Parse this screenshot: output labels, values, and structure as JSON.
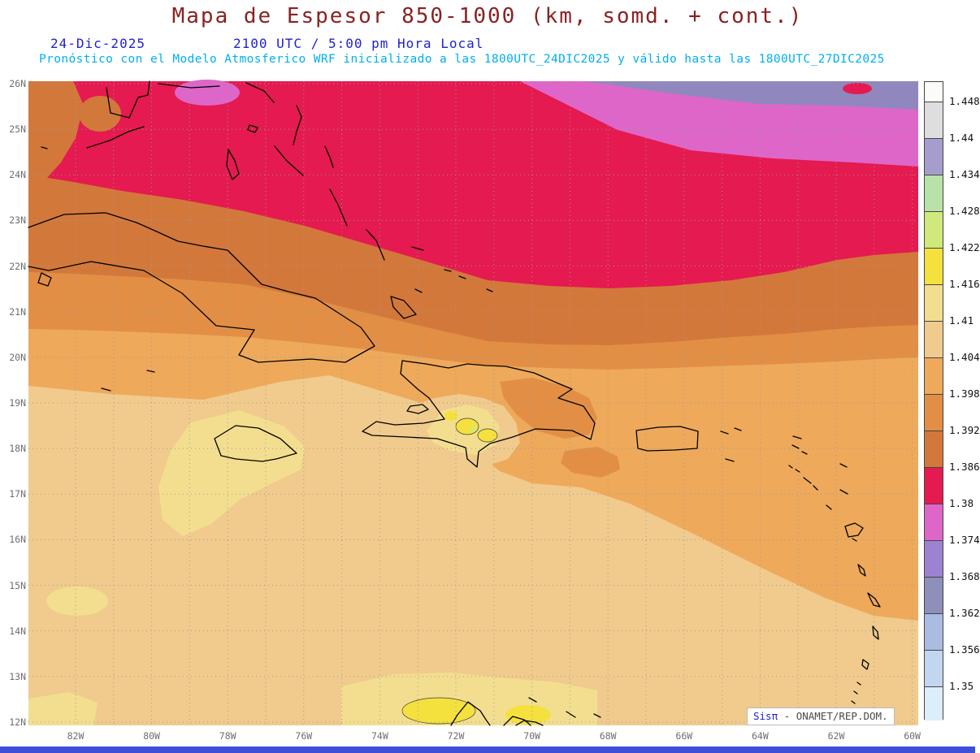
{
  "header": {
    "title": "Mapa de Espesor 850-1000 (km, somd. + cont.)",
    "date": "24-Dic-2025",
    "local_time": "2100 UTC / 5:00 pm Hora Local",
    "forecast_note": "Pronóstico con el Modelo Atmosferico WRF inicializado a las 1800UTC_24DIC2025 y válido hasta las  1800UTC_27DIC2025"
  },
  "map": {
    "lat_labels": [
      "26N",
      "25N",
      "24N",
      "23N",
      "22N",
      "21N",
      "20N",
      "19N",
      "18N",
      "17N",
      "16N",
      "15N",
      "14N",
      "13N",
      "12N"
    ],
    "lon_labels": [
      "82W",
      "80W",
      "78W",
      "76W",
      "74W",
      "72W",
      "70W",
      "68W",
      "66W",
      "64W",
      "62W",
      "60W"
    ],
    "watermark": {
      "brand": "Sisπ",
      "dash": "-",
      "org": "ONAMET/REP.DOM."
    }
  },
  "colorbar": {
    "labels": [
      "1.448",
      "1.44",
      "1.434",
      "1.428",
      "1.422",
      "1.416",
      "1.41",
      "1.404",
      "1.398",
      "1.392",
      "1.386",
      "1.38",
      "1.374",
      "1.368",
      "1.362",
      "1.356",
      "1.35"
    ],
    "colors": [
      "#FBFBF7",
      "#DEDEDE",
      "#A79DCD",
      "#B9E2A8",
      "#CFE97D",
      "#F4E13E",
      "#F3DE8F",
      "#F0CB8D",
      "#EEA95B",
      "#E28F45",
      "#D3783B",
      "#E51A50",
      "#DE66C9",
      "#9E82D2",
      "#8F8FBC",
      "#ABBBE2",
      "#C2D6F0",
      "#DCEEFA"
    ]
  },
  "palette": {
    "tan": "#F0CB8D",
    "light_orange": "#EEA95B",
    "orange": "#E28F45",
    "dark_orange": "#D3783B",
    "crimson": "#E51A50",
    "orchid": "#DE66C9",
    "slate_purple": "#9087BE",
    "pale_yellow": "#F3DE8F",
    "yellow": "#F4E13E",
    "yellow_green": "#CFE97D",
    "title_color": "#8B2121",
    "date_color": "#2121CC",
    "forecast_color": "#00AEEF",
    "bottom_bar": "#3D4ED8"
  },
  "contour_data": {
    "type": "filled_contour",
    "variable": "Espesor (thickness) 850-1000 hPa",
    "units": "km",
    "levels": [
      1.35,
      1.356,
      1.362,
      1.368,
      1.374,
      1.38,
      1.386,
      1.392,
      1.398,
      1.404,
      1.41,
      1.416,
      1.422,
      1.428,
      1.434,
      1.44,
      1.448
    ],
    "domain": {
      "lon_west": "83W",
      "lon_east": "60W",
      "lat_south": "12N",
      "lat_north": "26N"
    },
    "summary": "Thickness decreases northward: 1.404-1.41 km (tan) over the southern Caribbean; 1.398-1.404 (light orange) near 20N extending southeast past the Lesser Antilles; 1.392-1.398 and 1.386-1.392 (orange/brown) bands over Cuba; 1.38-1.386 (crimson) across 23-25N; 1.374-1.38 (orchid) and 1.368-1.374 (gray-purple) along the northern edge; local maxima 1.41-1.422 (pale yellow/yellow) over Hispaniola, around Jamaica, near 15N/82W and along 12N"
  }
}
